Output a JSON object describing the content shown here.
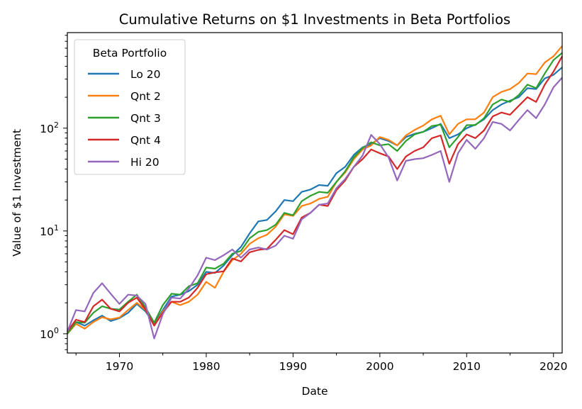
{
  "chart_data": {
    "type": "line",
    "title": "Cumulative Returns on $1 Investments in Beta Portfolios",
    "xlabel": "Date",
    "ylabel": "Value of $1 Investment",
    "y_scale": "log",
    "xlim": [
      1964,
      2021
    ],
    "ylim": [
      0.65,
      850
    ],
    "x_ticks": [
      1970,
      1980,
      1990,
      2000,
      2010,
      2020
    ],
    "y_ticks": [
      {
        "value": 1,
        "label": "10",
        "exp": "0"
      },
      {
        "value": 10,
        "label": "10",
        "exp": "1"
      },
      {
        "value": 100,
        "label": "10",
        "exp": "2"
      }
    ],
    "legend": {
      "title": "Beta Portfolio",
      "placement": "upper left"
    },
    "grid": false,
    "x": [
      1964,
      1965,
      1966,
      1967,
      1968,
      1969,
      1970,
      1971,
      1972,
      1973,
      1974,
      1975,
      1976,
      1977,
      1978,
      1979,
      1980,
      1981,
      1982,
      1983,
      1984,
      1985,
      1986,
      1987,
      1988,
      1989,
      1990,
      1991,
      1992,
      1993,
      1994,
      1995,
      1996,
      1997,
      1998,
      1999,
      2000,
      2001,
      2002,
      2003,
      2004,
      2005,
      2006,
      2007,
      2008,
      2009,
      2010,
      2011,
      2012,
      2013,
      2014,
      2015,
      2016,
      2017,
      2018,
      2019,
      2020,
      2021
    ],
    "series": [
      {
        "name": "Lo 20",
        "color": "#1f77b4",
        "values": [
          1.0,
          1.3,
          1.2,
          1.35,
          1.5,
          1.33,
          1.42,
          1.6,
          1.95,
          1.65,
          1.25,
          1.7,
          2.3,
          2.4,
          2.6,
          3.0,
          4.0,
          3.9,
          4.6,
          5.8,
          7.0,
          9.5,
          12.4,
          12.8,
          15.5,
          20.0,
          19.5,
          24.0,
          25.3,
          28.0,
          27.5,
          36.5,
          42.0,
          55.0,
          65.0,
          70.0,
          80.0,
          75.0,
          68.0,
          82.0,
          88.0,
          92.0,
          100.0,
          110.0,
          80.0,
          87.0,
          100.0,
          108.0,
          122.0,
          150.0,
          170.0,
          185.0,
          200.0,
          245.0,
          240.0,
          305.0,
          330.0,
          390.0
        ]
      },
      {
        "name": "Qnt 2",
        "color": "#ff7f0e",
        "values": [
          1.0,
          1.25,
          1.12,
          1.3,
          1.45,
          1.38,
          1.44,
          1.7,
          2.0,
          1.7,
          1.2,
          1.65,
          2.05,
          1.9,
          2.05,
          2.4,
          3.2,
          2.8,
          4.0,
          5.2,
          6.0,
          7.5,
          8.5,
          9.2,
          11.0,
          14.5,
          14.0,
          17.5,
          18.5,
          20.5,
          21.5,
          30.0,
          37.0,
          50.0,
          62.0,
          68.0,
          82.0,
          77.0,
          68.0,
          85.0,
          96.0,
          106.0,
          122.0,
          132.0,
          87.0,
          110.0,
          122.0,
          122.0,
          142.0,
          200.0,
          225.0,
          240.0,
          275.0,
          340.0,
          335.0,
          435.0,
          500.0,
          630.0
        ]
      },
      {
        "name": "Qnt 3",
        "color": "#2ca02c",
        "values": [
          1.0,
          1.3,
          1.28,
          1.6,
          1.85,
          1.75,
          1.72,
          2.05,
          2.4,
          1.8,
          1.28,
          1.9,
          2.45,
          2.4,
          2.9,
          3.1,
          4.4,
          4.3,
          4.8,
          6.0,
          6.4,
          8.5,
          9.8,
          10.2,
          11.5,
          15.0,
          14.2,
          19.5,
          22.0,
          24.0,
          23.5,
          30.0,
          38.0,
          52.0,
          64.0,
          73.0,
          68.0,
          70.0,
          60.0,
          75.0,
          87.0,
          92.0,
          105.0,
          108.0,
          65.0,
          82.0,
          107.0,
          107.0,
          125.0,
          170.0,
          190.0,
          180.0,
          210.0,
          265.0,
          245.0,
          340.0,
          460.0,
          540.0
        ]
      },
      {
        "name": "Qnt 4",
        "color": "#d62728",
        "values": [
          1.05,
          1.37,
          1.3,
          1.85,
          2.15,
          1.75,
          1.65,
          2.0,
          2.25,
          1.72,
          1.2,
          1.6,
          2.05,
          2.05,
          2.25,
          2.8,
          3.8,
          3.95,
          4.05,
          5.4,
          5.05,
          6.2,
          6.55,
          6.7,
          8.2,
          10.2,
          9.3,
          13.5,
          15.0,
          18.0,
          17.5,
          25.0,
          31.0,
          42.0,
          50.0,
          62.0,
          57.0,
          53.0,
          40.0,
          53.0,
          60.0,
          65.0,
          80.0,
          85.0,
          45.0,
          70.0,
          87.0,
          80.0,
          95.0,
          130.0,
          142.0,
          135.0,
          165.0,
          200.0,
          180.0,
          265.0,
          355.0,
          500.0
        ]
      },
      {
        "name": "Hi 20",
        "color": "#9467bd",
        "values": [
          1.05,
          1.7,
          1.65,
          2.5,
          3.1,
          2.45,
          1.95,
          2.4,
          2.35,
          1.95,
          0.9,
          1.55,
          2.25,
          2.2,
          2.75,
          3.7,
          5.5,
          5.2,
          5.8,
          6.6,
          5.5,
          6.6,
          6.9,
          6.6,
          7.2,
          9.0,
          8.4,
          13.0,
          15.0,
          18.0,
          18.5,
          26.0,
          32.0,
          42.0,
          54.0,
          86.0,
          70.0,
          52.0,
          31.0,
          48.0,
          50.0,
          51.0,
          55.0,
          60.0,
          30.0,
          57.0,
          77.0,
          63.0,
          80.0,
          115.0,
          110.0,
          95.0,
          120.0,
          150.0,
          125.0,
          170.0,
          250.0,
          310.0
        ]
      }
    ]
  }
}
